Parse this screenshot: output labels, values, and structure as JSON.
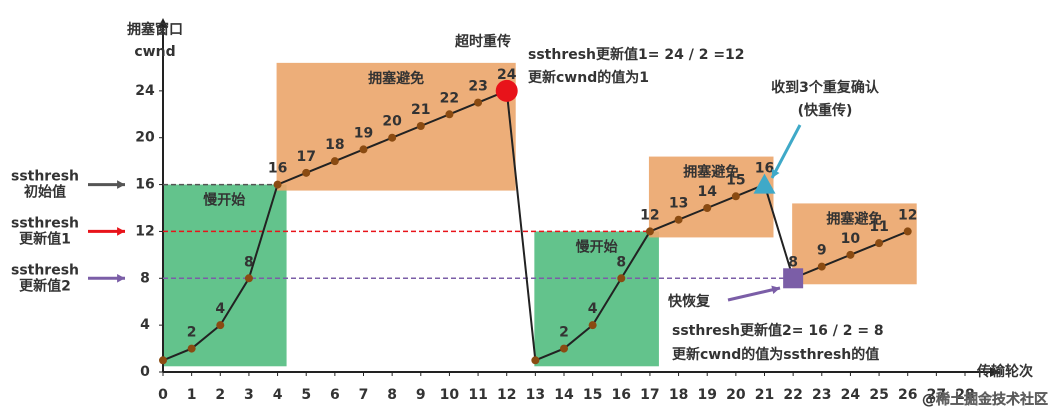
{
  "chart_data": {
    "type": "line",
    "ylabel": [
      "拥塞窗口",
      "cwnd"
    ],
    "xlabel": "传输轮次",
    "x": [
      0,
      1,
      2,
      3,
      4,
      5,
      6,
      7,
      8,
      9,
      10,
      11,
      12,
      13,
      14,
      15,
      16,
      17,
      18,
      19,
      20,
      21,
      22,
      23,
      24,
      25,
      26
    ],
    "values": [
      1,
      2,
      4,
      8,
      16,
      17,
      18,
      19,
      20,
      21,
      22,
      23,
      24,
      1,
      2,
      4,
      8,
      12,
      13,
      14,
      15,
      16,
      8,
      9,
      10,
      11,
      12
    ],
    "value_labels": [
      null,
      "2",
      "4",
      "8",
      "16",
      "17",
      "18",
      "19",
      "20",
      "21",
      "22",
      "23",
      "24",
      null,
      "2",
      "4",
      "8",
      "12",
      "13",
      "14",
      "15",
      "16",
      "8",
      "9",
      "10",
      "11",
      "12"
    ],
    "color": "#222",
    "xlim": [
      0,
      28
    ],
    "xticks": [
      0,
      1,
      2,
      3,
      4,
      5,
      6,
      7,
      8,
      9,
      10,
      11,
      12,
      13,
      14,
      15,
      16,
      17,
      18,
      19,
      20,
      21,
      22,
      23,
      24,
      25,
      26,
      27,
      28
    ],
    "ylim": [
      0,
      28
    ],
    "yticks": [
      0,
      4,
      8,
      12,
      16,
      20,
      24
    ],
    "phases": [
      {
        "label": "慢开始",
        "x": [
          0,
          4
        ],
        "color": "#52bd7f"
      },
      {
        "label": "拥塞避免",
        "x": [
          4,
          12
        ],
        "color": "#eba56a"
      },
      {
        "label": "慢开始",
        "x": [
          13,
          17
        ],
        "color": "#52bd7f"
      },
      {
        "label": "拥塞避免",
        "x": [
          17,
          21
        ],
        "color": "#eba56a"
      },
      {
        "label": "拥塞避免",
        "x": [
          22,
          26
        ],
        "color": "#eba56a"
      }
    ],
    "thresholds": [
      {
        "label": [
          "ssthresh",
          "初始值"
        ],
        "value": 16,
        "x_end": 4,
        "color": "#555555"
      },
      {
        "label": [
          "ssthresh",
          "更新值1"
        ],
        "value": 12,
        "x_end": 17,
        "color": "#e8131a"
      },
      {
        "label": [
          "ssthresh",
          "更新值2"
        ],
        "value": 8,
        "x_end": 22,
        "color": "#7b5ea7"
      }
    ],
    "events": [
      {
        "index": 12,
        "marker": "circle",
        "color": "#e8131a",
        "label": [
          "超时重传"
        ],
        "note": [
          "ssthresh更新值1= 24 / 2 =12",
          "更新cwnd的值为1"
        ]
      },
      {
        "index": 21,
        "marker": "triangle",
        "color": "#3fa9c8",
        "label": [
          "收到3个重复确认",
          "(快重传)"
        ]
      },
      {
        "index": 22,
        "marker": "square",
        "color": "#7b5ea7",
        "label": [
          "快恢复"
        ],
        "note": [
          "ssthresh更新值2= 16 / 2 = 8",
          "更新cwnd的值为ssthresh的值"
        ]
      }
    ],
    "watermark": "@稀土掘金技术社区"
  }
}
